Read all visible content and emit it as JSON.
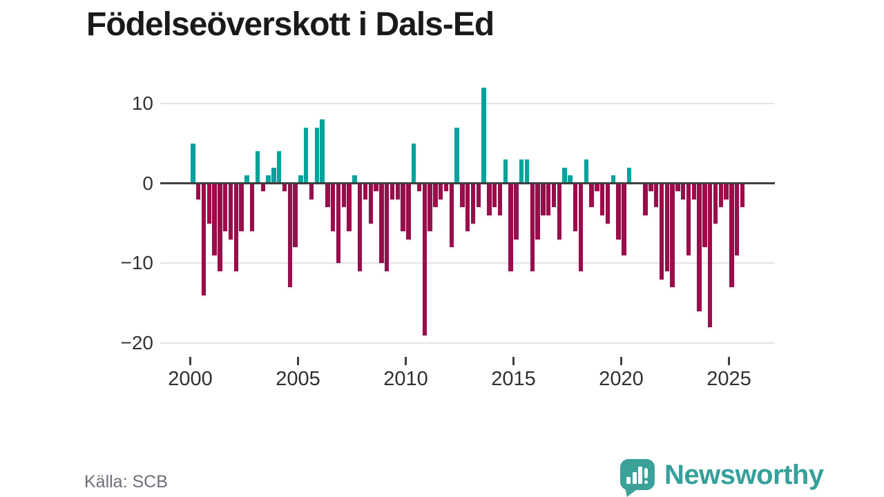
{
  "header": {
    "title": "Födelseöverskott i Dals-Ed"
  },
  "footer": {
    "source_label": "Källa: SCB",
    "brand": {
      "name": "Newsworthy",
      "logo_icon": "speech-bubble-bar-chart"
    }
  },
  "colors": {
    "positive_bar": "#00a39b",
    "negative_bar": "#9a0c4c",
    "brand_teal": "#3ba199",
    "grid": "#e4e4e6",
    "zero_line": "#3f3f3f",
    "axis_text": "#333333",
    "title_text": "#1a1a18",
    "source_text": "#6e6e78"
  },
  "axes": {
    "y_tick_labels": [
      "10",
      "0",
      "−10",
      "−20"
    ],
    "y_tick_values": [
      10,
      0,
      -10,
      -20
    ],
    "x_tick_labels": [
      "2000",
      "2005",
      "2010",
      "2015",
      "2020",
      "2025"
    ],
    "x_tick_years": [
      2000,
      2005,
      2010,
      2015,
      2020,
      2025
    ]
  },
  "chart_data": {
    "type": "bar",
    "title": "Födelseöverskott i Dals-Ed",
    "x_unit": "quarter",
    "xlabel": "",
    "ylabel": "",
    "ylim": [
      -20,
      12
    ],
    "grid": "horizontal",
    "legend": "none",
    "categories": [
      "2000Q1",
      "2000Q2",
      "2000Q3",
      "2000Q4",
      "2001Q1",
      "2001Q2",
      "2001Q3",
      "2001Q4",
      "2002Q1",
      "2002Q2",
      "2002Q3",
      "2002Q4",
      "2003Q1",
      "2003Q2",
      "2003Q3",
      "2003Q4",
      "2004Q1",
      "2004Q2",
      "2004Q3",
      "2004Q4",
      "2005Q1",
      "2005Q2",
      "2005Q3",
      "2005Q4",
      "2006Q1",
      "2006Q2",
      "2006Q3",
      "2006Q4",
      "2007Q1",
      "2007Q2",
      "2007Q3",
      "2007Q4",
      "2008Q1",
      "2008Q2",
      "2008Q3",
      "2008Q4",
      "2009Q1",
      "2009Q2",
      "2009Q3",
      "2009Q4",
      "2010Q1",
      "2010Q2",
      "2010Q3",
      "2010Q4",
      "2011Q1",
      "2011Q2",
      "2011Q3",
      "2011Q4",
      "2012Q1",
      "2012Q2",
      "2012Q3",
      "2012Q4",
      "2013Q1",
      "2013Q2",
      "2013Q3",
      "2013Q4",
      "2014Q1",
      "2014Q2",
      "2014Q3",
      "2014Q4",
      "2015Q1",
      "2015Q2",
      "2015Q3",
      "2015Q4",
      "2016Q1",
      "2016Q2",
      "2016Q3",
      "2016Q4",
      "2017Q1",
      "2017Q2",
      "2017Q3",
      "2017Q4",
      "2018Q1",
      "2018Q2",
      "2018Q3",
      "2018Q4",
      "2019Q1",
      "2019Q2",
      "2019Q3",
      "2019Q4",
      "2020Q1",
      "2020Q2",
      "2020Q3",
      "2020Q4",
      "2021Q1",
      "2021Q2",
      "2021Q3",
      "2021Q4",
      "2022Q1",
      "2022Q2",
      "2022Q3",
      "2022Q4",
      "2023Q1",
      "2023Q2",
      "2023Q3",
      "2023Q4",
      "2024Q1",
      "2024Q2",
      "2024Q3",
      "2024Q4",
      "2025Q1",
      "2025Q2",
      "2025Q3"
    ],
    "values": [
      5,
      -2,
      -14,
      -5,
      -9,
      -11,
      -6,
      -7,
      -11,
      -6,
      1,
      -6,
      4,
      -1,
      1,
      2,
      4,
      -1,
      -13,
      -8,
      1,
      7,
      -2,
      7,
      8,
      -3,
      -6,
      -10,
      -3,
      -6,
      1,
      -11,
      -2,
      -5,
      -1,
      -10,
      -11,
      -2,
      -2,
      -6,
      -7,
      5,
      -1,
      -19,
      -6,
      -3,
      -2,
      -1,
      -8,
      7,
      -3,
      -6,
      -5,
      -3,
      12,
      -4,
      -3,
      -4,
      3,
      -11,
      -7,
      3,
      3,
      -11,
      -7,
      -4,
      -4,
      -3,
      -7,
      2,
      1,
      -6,
      -11,
      3,
      -3,
      -1,
      -4,
      -5,
      1,
      -7,
      -9,
      2,
      0,
      0,
      -4,
      -1,
      -3,
      -12,
      -11,
      -13,
      -1,
      -2,
      -9,
      -2,
      -16,
      -8,
      -18,
      -5,
      -3,
      -2,
      -13,
      -9,
      -3
    ]
  }
}
